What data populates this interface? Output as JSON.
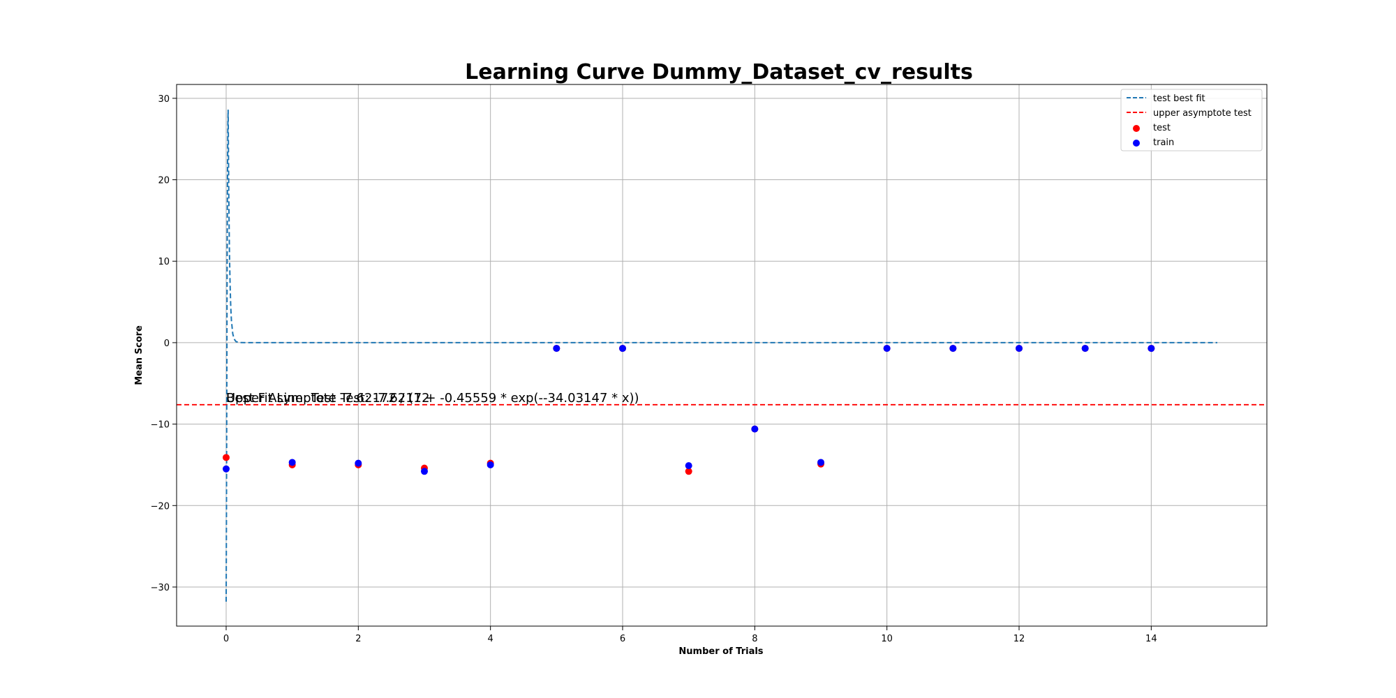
{
  "chart_data": {
    "type": "scatter",
    "title": "Learning Curve Dummy_Dataset_cv_results",
    "xlabel": "Number of Trials",
    "ylabel": "Mean Score",
    "xlim": [
      -0.75,
      15.75
    ],
    "ylim": [
      -34.8,
      31.7
    ],
    "xticks": [
      0,
      2,
      4,
      6,
      8,
      10,
      12,
      14
    ],
    "xtick_labels": [
      "0",
      "2",
      "4",
      "6",
      "8",
      "10",
      "12",
      "14"
    ],
    "yticks": [
      30,
      20,
      10,
      0,
      -10,
      -20,
      -30
    ],
    "ytick_labels": [
      "30",
      "20",
      "10",
      "0",
      "−10",
      "−20",
      "−30"
    ],
    "grid": true,
    "legend_position": "top-right",
    "legend": [
      {
        "label": "test best fit",
        "kind": "line",
        "color": "#1f77b4",
        "dashed": true
      },
      {
        "label": "upper asymptote test",
        "kind": "line",
        "color": "#ff0000",
        "dashed": true
      },
      {
        "label": "test",
        "kind": "marker",
        "color": "#ff0000"
      },
      {
        "label": "train",
        "kind": "marker",
        "color": "#0000ff"
      }
    ],
    "series": [
      {
        "name": "test",
        "color": "#ff0000",
        "points": [
          [
            0,
            -14.1
          ],
          [
            1,
            -15.0
          ],
          [
            2,
            -15.0
          ],
          [
            3,
            -15.4
          ],
          [
            4,
            -14.8
          ],
          [
            5,
            -0.7
          ],
          [
            6,
            -0.7
          ],
          [
            7,
            -15.8
          ],
          [
            8,
            -10.6
          ],
          [
            9,
            -14.9
          ],
          [
            10,
            -0.7
          ],
          [
            11,
            -0.7
          ],
          [
            12,
            -0.7
          ],
          [
            13,
            -0.7
          ],
          [
            14,
            -0.7
          ]
        ]
      },
      {
        "name": "train",
        "color": "#0000ff",
        "points": [
          [
            0,
            -15.5
          ],
          [
            1,
            -14.7
          ],
          [
            2,
            -14.8
          ],
          [
            3,
            -15.8
          ],
          [
            4,
            -15.0
          ],
          [
            5,
            -0.7
          ],
          [
            6,
            -0.7
          ],
          [
            7,
            -15.1
          ],
          [
            8,
            -10.6
          ],
          [
            9,
            -14.7
          ],
          [
            10,
            -0.7
          ],
          [
            11,
            -0.7
          ],
          [
            12,
            -0.7
          ],
          [
            13,
            -0.7
          ],
          [
            14,
            -0.7
          ]
        ]
      }
    ],
    "fit_line": {
      "name": "test best fit",
      "color": "#1f77b4",
      "points": [
        [
          0.0,
          -31.8
        ],
        [
          0.005,
          -20.0
        ],
        [
          0.01,
          -5.0
        ],
        [
          0.015,
          10.0
        ],
        [
          0.02,
          20.0
        ],
        [
          0.025,
          26.5
        ],
        [
          0.03,
          28.6
        ],
        [
          0.04,
          18.0
        ],
        [
          0.05,
          11.0
        ],
        [
          0.06,
          7.0
        ],
        [
          0.07,
          4.3
        ],
        [
          0.08,
          2.7
        ],
        [
          0.1,
          1.1
        ],
        [
          0.12,
          0.45
        ],
        [
          0.15,
          0.12
        ],
        [
          0.2,
          0.02
        ],
        [
          0.3,
          0.0
        ],
        [
          15.0,
          0.0
        ]
      ]
    },
    "asymptote": {
      "name": "upper asymptote test",
      "y": -7.62,
      "color": "#ff0000"
    },
    "annotations": [
      {
        "text": "Best Fit Line: Test -7.62172 / (1 + -0.45559 * exp(--34.03147 * x))",
        "x": 0,
        "y": -7.3
      },
      {
        "text": "Upper Asymptote Test: -7.62172",
        "x": 0,
        "y": -7.3
      }
    ]
  }
}
